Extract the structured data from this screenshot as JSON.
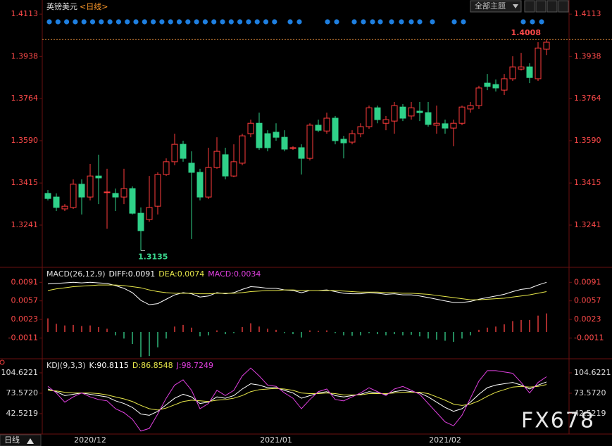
{
  "header": {
    "symbol": "英镑美元",
    "period": "<日线>",
    "theme_button": "全部主题"
  },
  "footer": {
    "period": "日线"
  },
  "watermark": "FX678",
  "chart_data": [
    {
      "type": "candlestick",
      "categories": [
        null,
        null,
        null,
        null,
        null,
        "2020/12",
        null,
        null,
        null,
        null,
        null,
        null,
        null,
        null,
        null,
        null,
        null,
        null,
        null,
        null,
        null,
        null,
        null,
        null,
        null,
        null,
        null,
        "2021/01",
        null,
        null,
        null,
        null,
        null,
        null,
        null,
        null,
        null,
        null,
        null,
        null,
        null,
        null,
        null,
        null,
        null,
        null,
        null,
        "2021/02",
        null,
        null,
        null,
        null,
        null,
        null,
        null,
        null,
        null,
        null,
        null,
        null
      ],
      "open": [
        1.3372,
        1.3357,
        1.3308,
        1.3314,
        1.341,
        1.3357,
        1.3444,
        1.3376,
        1.3372,
        1.3357,
        1.3392,
        1.329,
        1.3264,
        1.3319,
        1.345,
        1.3503,
        1.3575,
        1.3497,
        1.3459,
        1.3357,
        1.3479,
        1.3532,
        1.3444,
        1.3497,
        1.3619,
        1.3662,
        1.3619,
        1.3625,
        1.3604,
        1.3558,
        1.3561,
        1.3517,
        1.3654,
        1.363,
        1.3683,
        1.3596,
        1.3584,
        1.3619,
        1.3648,
        1.3726,
        1.3662,
        1.3671,
        1.3729,
        1.3692,
        1.3712,
        1.3706,
        1.3654,
        1.366,
        1.3642,
        1.3662,
        1.3721,
        1.3735,
        1.3828,
        1.3822,
        1.3799,
        1.3846,
        1.3886,
        1.3895,
        1.3846,
        1.3968
      ],
      "high": [
        1.3386,
        1.3372,
        1.3328,
        1.343,
        1.343,
        1.3494,
        1.3532,
        1.3474,
        1.3392,
        1.3474,
        1.3401,
        1.3314,
        1.3444,
        1.3459,
        1.3517,
        1.3619,
        1.359,
        1.3546,
        1.3474,
        1.3561,
        1.3604,
        1.3561,
        1.3575,
        1.3619,
        1.3677,
        1.3706,
        1.3633,
        1.3662,
        1.3633,
        1.3567,
        1.3575,
        1.3662,
        1.3677,
        1.3706,
        1.3692,
        1.361,
        1.3633,
        1.3662,
        1.3735,
        1.3735,
        1.3692,
        1.375,
        1.3741,
        1.375,
        1.375,
        1.375,
        1.3735,
        1.3677,
        1.3677,
        1.3735,
        1.375,
        1.3817,
        1.3866,
        1.3843,
        1.3866,
        1.3939,
        1.3953,
        1.391,
        1.3997,
        1.4008
      ],
      "low": [
        1.3343,
        1.3299,
        1.3299,
        1.3308,
        1.3285,
        1.3343,
        1.3328,
        1.3226,
        1.3299,
        1.3328,
        1.3285,
        1.3135,
        1.3255,
        1.3285,
        1.3444,
        1.3488,
        1.3503,
        1.3183,
        1.3343,
        1.3349,
        1.3474,
        1.343,
        1.3439,
        1.3488,
        1.3604,
        1.3552,
        1.3546,
        1.359,
        1.3546,
        1.3552,
        1.345,
        1.3508,
        1.3625,
        1.3619,
        1.3575,
        1.3517,
        1.3575,
        1.3604,
        1.3639,
        1.3662,
        1.3633,
        1.3619,
        1.3671,
        1.3677,
        1.3671,
        1.3648,
        1.3619,
        1.3619,
        1.3567,
        1.3654,
        1.3706,
        1.3721,
        1.3799,
        1.3793,
        1.3779,
        1.3837,
        1.388,
        1.3828,
        1.3837,
        1.3944
      ],
      "close": [
        1.3351,
        1.3314,
        1.3319,
        1.341,
        1.3357,
        1.3444,
        1.3436,
        1.3378,
        1.3357,
        1.3392,
        1.329,
        1.3218,
        1.3314,
        1.345,
        1.3503,
        1.3575,
        1.3517,
        1.3459,
        1.3357,
        1.3479,
        1.3546,
        1.3444,
        1.3503,
        1.361,
        1.3662,
        1.3561,
        1.3561,
        1.3604,
        1.3555,
        1.3561,
        1.3517,
        1.3654,
        1.3633,
        1.3683,
        1.359,
        1.3581,
        1.3619,
        1.3648,
        1.3726,
        1.3677,
        1.3677,
        1.3735,
        1.3683,
        1.3726,
        1.3706,
        1.3657,
        1.3662,
        1.3642,
        1.3662,
        1.3729,
        1.3735,
        1.3808,
        1.3814,
        1.3808,
        1.3846,
        1.3895,
        1.3895,
        1.3851,
        1.3973,
        1.3997
      ],
      "up_color": "#ff3b3b",
      "down_color": "#2fd189",
      "ylim": [
        1.3081,
        1.4157
      ],
      "yticks": [
        1.4113,
        1.3938,
        1.3764,
        {
          "value": 1.359,
          "label": "1.3590"
        },
        1.3415,
        1.3241
      ],
      "max_label": 1.4008,
      "min_label": 1.3135
    },
    {
      "type": "macd",
      "title": "MACD(26,12,9)",
      "series": [
        {
          "name": "DIFF:",
          "color": "#ffffff",
          "values": [
            0.0088,
            0.0089,
            0.009,
            0.0091,
            0.009,
            0.0091,
            0.009,
            0.0089,
            0.0085,
            0.008,
            0.0072,
            0.0058,
            0.005,
            0.0052,
            0.006,
            0.0068,
            0.0072,
            0.007,
            0.0064,
            0.0066,
            0.0072,
            0.007,
            0.0072,
            0.0078,
            0.0083,
            0.0082,
            0.008,
            0.008,
            0.0077,
            0.0076,
            0.0072,
            0.0076,
            0.0076,
            0.0077,
            0.0074,
            0.0071,
            0.007,
            0.007,
            0.0072,
            0.0071,
            0.0069,
            0.007,
            0.0068,
            0.0068,
            0.0066,
            0.0063,
            0.006,
            0.0057,
            0.0054,
            0.0054,
            0.0056,
            0.006,
            0.0063,
            0.0066,
            0.0069,
            0.0074,
            0.0078,
            0.008,
            0.0086,
            0.0091
          ]
        },
        {
          "name": "DEA:",
          "color": "#e8e84a",
          "values": [
            0.0076,
            0.0079,
            0.0081,
            0.0083,
            0.0084,
            0.0085,
            0.0086,
            0.0086,
            0.0086,
            0.0085,
            0.0083,
            0.0081,
            0.0077,
            0.0074,
            0.0072,
            0.0071,
            0.0071,
            0.0071,
            0.007,
            0.007,
            0.0071,
            0.0071,
            0.0071,
            0.0072,
            0.0074,
            0.0075,
            0.0076,
            0.0076,
            0.0077,
            0.0077,
            0.0076,
            0.0076,
            0.0076,
            0.0076,
            0.0076,
            0.0075,
            0.0074,
            0.0073,
            0.0073,
            0.0073,
            0.0072,
            0.0072,
            0.0071,
            0.0071,
            0.007,
            0.0069,
            0.0067,
            0.0065,
            0.0063,
            0.0061,
            0.0059,
            0.0059,
            0.006,
            0.0061,
            0.0062,
            0.0064,
            0.0066,
            0.0068,
            0.0071,
            0.0074
          ]
        },
        {
          "name": "MACD:",
          "color": "#e040e0",
          "up_color": "#e03a3a",
          "down_color": "#2fb87a",
          "values": [
            0.0025,
            0.0015,
            0.0012,
            0.0013,
            0.0011,
            0.0012,
            0.0009,
            0.0006,
            -0.0006,
            -0.0012,
            -0.0022,
            -0.0046,
            -0.0044,
            -0.0028,
            -0.0012,
            0.001,
            0.0013,
            0.0008,
            -0.0008,
            -0.0006,
            0.0003,
            -0.0004,
            -0.0002,
            0.0009,
            0.0016,
            0.001,
            0.0006,
            0.0004,
            -0.0002,
            -0.0004,
            -0.001,
            0.0003,
            0.0002,
            0.0003,
            -0.0002,
            -0.0006,
            -0.0007,
            -0.0006,
            -0.0002,
            -0.0004,
            -0.0006,
            -0.0004,
            -0.0006,
            -0.0005,
            -0.0008,
            -0.0012,
            -0.0014,
            -0.0016,
            -0.0018,
            -0.0012,
            -0.0006,
            0.0004,
            0.0008,
            0.001,
            0.0014,
            0.002,
            0.0022,
            0.0022,
            0.003,
            0.0034
          ]
        }
      ],
      "ylim": [
        -0.0049,
        0.0112
      ],
      "yticks": [
        0.0091,
        0.0057,
        0.0023,
        -0.0011
      ]
    },
    {
      "type": "line",
      "title": "KDJ(9,3,3)",
      "series": [
        {
          "name": "K:",
          "color": "#ffffff",
          "values": [
            80,
            76,
            70,
            72,
            74,
            72,
            70,
            68,
            62,
            58,
            52,
            42,
            40,
            46,
            56,
            66,
            72,
            68,
            58,
            60,
            68,
            66,
            70,
            80,
            88,
            86,
            82,
            82,
            78,
            74,
            66,
            70,
            74,
            76,
            70,
            68,
            70,
            72,
            76,
            74,
            72,
            76,
            78,
            76,
            74,
            68,
            60,
            52,
            46,
            50,
            60,
            72,
            82,
            86,
            88,
            90,
            86,
            80,
            86,
            90.8115
          ]
        },
        {
          "name": "D:",
          "color": "#e8e84a",
          "values": [
            78,
            77,
            75,
            74,
            74,
            74,
            73,
            71,
            68,
            65,
            61,
            55,
            50,
            48,
            51,
            56,
            61,
            63,
            62,
            61,
            63,
            64,
            66,
            70,
            76,
            79,
            80,
            81,
            80,
            78,
            74,
            73,
            73,
            74,
            73,
            71,
            71,
            71,
            73,
            73,
            73,
            74,
            75,
            75,
            75,
            73,
            68,
            63,
            57,
            55,
            57,
            62,
            69,
            75,
            79,
            83,
            84,
            83,
            84,
            86.8548
          ]
        },
        {
          "name": "J:",
          "color": "#e040e0",
          "values": [
            84,
            74,
            60,
            68,
            74,
            68,
            64,
            62,
            50,
            44,
            34,
            16,
            20,
            42,
            66,
            86,
            94,
            78,
            50,
            58,
            78,
            70,
            78,
            100,
            112,
            100,
            86,
            84,
            74,
            66,
            50,
            64,
            76,
            80,
            64,
            62,
            68,
            74,
            82,
            76,
            70,
            80,
            84,
            78,
            72,
            58,
            44,
            30,
            24,
            40,
            66,
            92,
            108,
            108,
            106,
            104,
            90,
            74,
            90,
            98.7249
          ]
        }
      ],
      "ylim": [
        13.6,
        120.7
      ],
      "yticks": [
        104.6221,
        {
          "value": 73.572,
          "label": "73.5720"
        },
        42.5219
      ]
    }
  ]
}
